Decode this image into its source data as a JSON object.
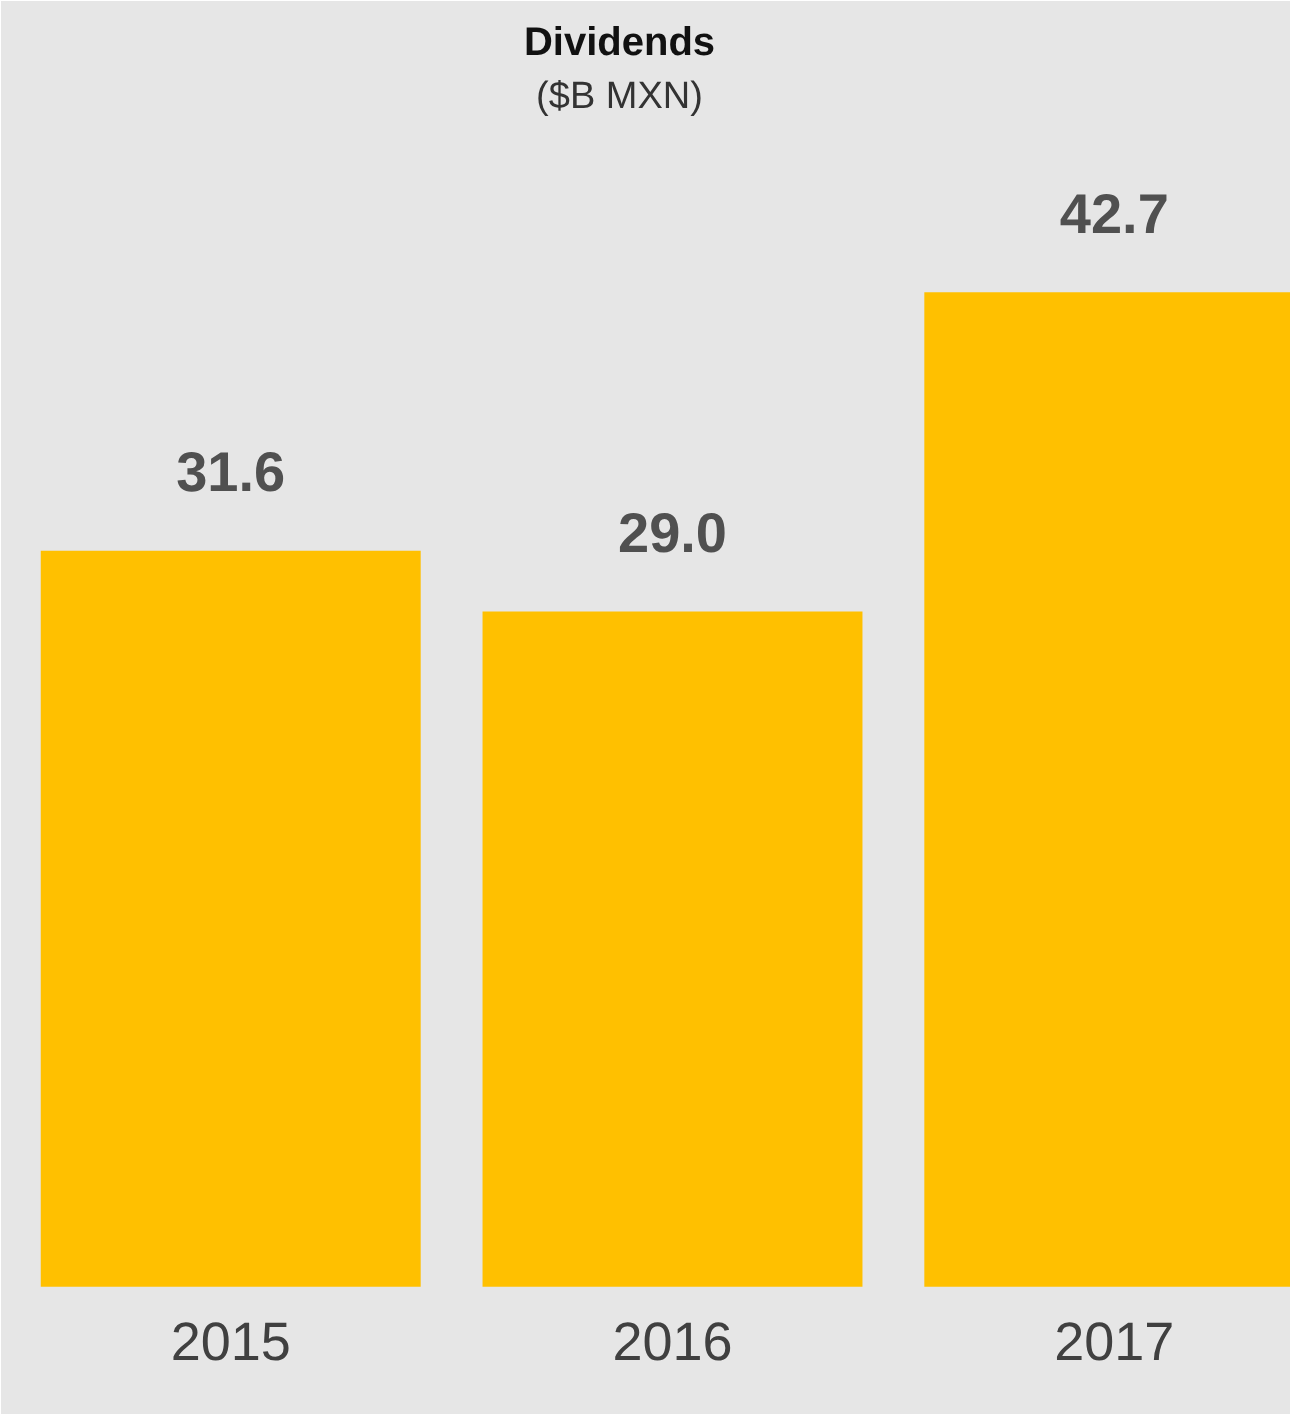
{
  "chart_data": {
    "type": "bar",
    "title": "Dividends",
    "subtitle": "($B MXN)",
    "categories": [
      "2015",
      "2016",
      "2017"
    ],
    "values": [
      31.6,
      29.0,
      42.7
    ],
    "value_labels": [
      "31.6",
      "29.0",
      "42.7"
    ],
    "color": "#ffc000"
  }
}
